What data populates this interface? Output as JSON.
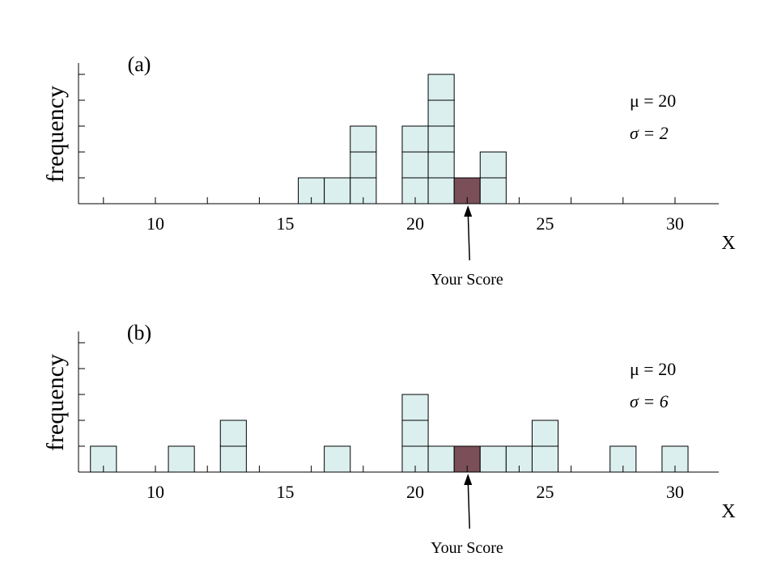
{
  "chart_data": [
    {
      "type": "bar",
      "panel_label": "(a)",
      "ylabel": "frequency",
      "xlabel": "X",
      "xticks": [
        "10",
        "15",
        "20",
        "25",
        "30"
      ],
      "annotation_lines": [
        "μ = 20",
        "σ = 2"
      ],
      "pointer_label": "Your Score",
      "highlight_score": 22,
      "bins": [
        16,
        17,
        18,
        20,
        21,
        22,
        23
      ],
      "counts": [
        1,
        1,
        3,
        3,
        5,
        1,
        2
      ],
      "colors": {
        "bar": "#dcefef",
        "highlight": "#7a4f57"
      }
    },
    {
      "type": "bar",
      "panel_label": "(b)",
      "ylabel": "frequency",
      "xlabel": "X",
      "xticks": [
        "10",
        "15",
        "20",
        "25",
        "30"
      ],
      "annotation_lines": [
        "μ = 20",
        "σ = 6"
      ],
      "pointer_label": "Your Score",
      "highlight_score": 22,
      "bins": [
        8,
        11,
        13,
        17,
        20,
        21,
        22,
        23,
        24,
        25,
        28,
        30
      ],
      "counts": [
        1,
        1,
        2,
        1,
        3,
        1,
        1,
        1,
        1,
        2,
        1,
        1
      ],
      "colors": {
        "bar": "#dcefef",
        "highlight": "#7a4f57"
      }
    }
  ]
}
